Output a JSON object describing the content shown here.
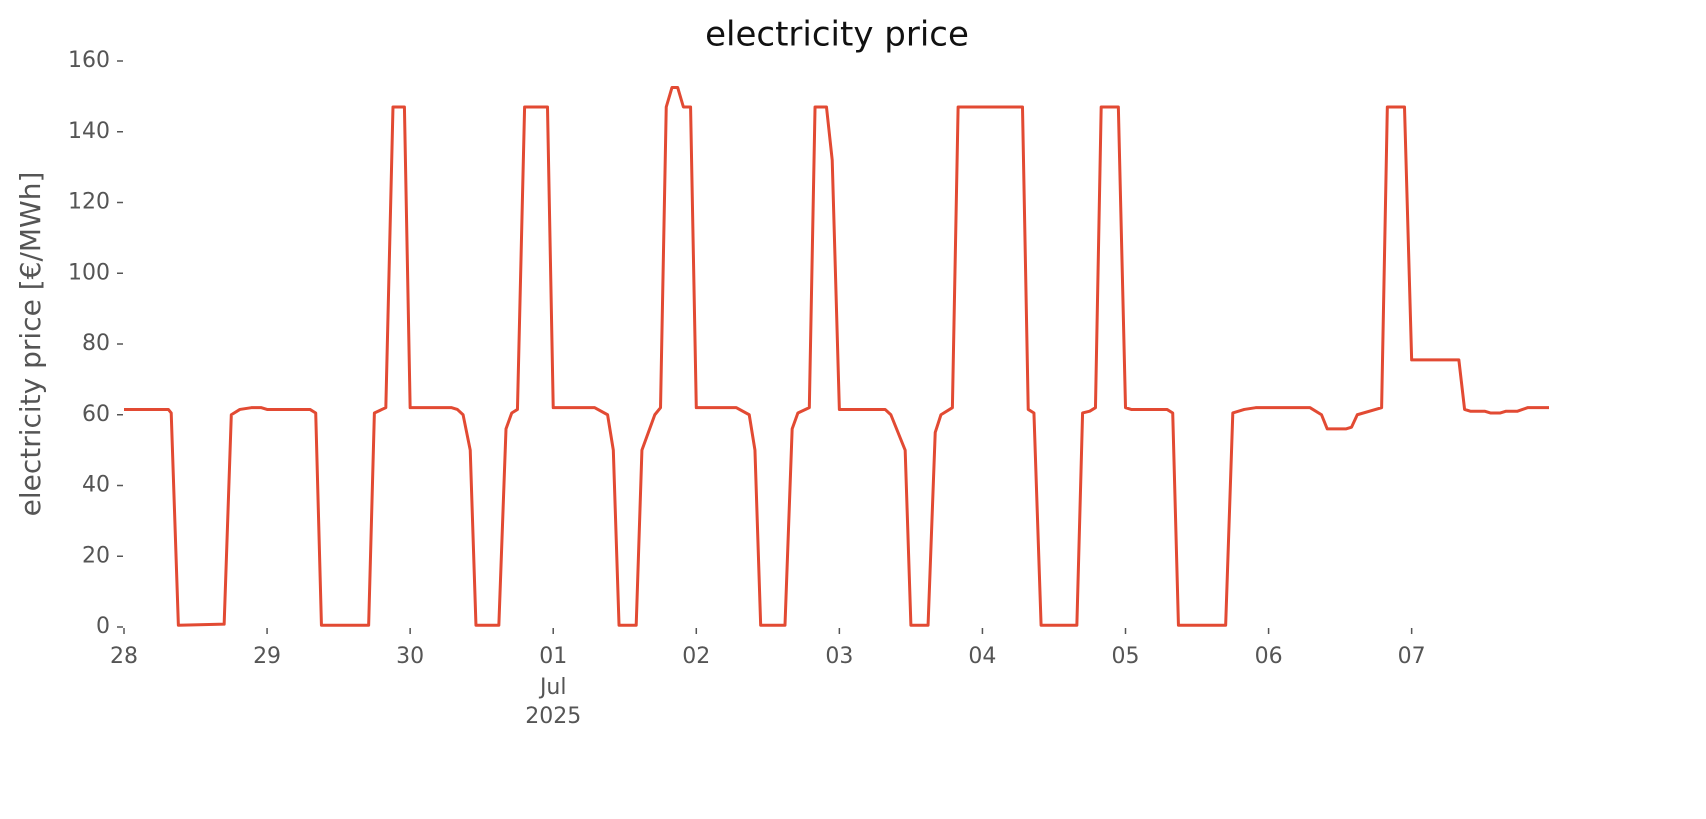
{
  "chart_data": {
    "type": "line",
    "title": "electricity price",
    "y_label": "electricity price [€/MWh]",
    "color": "#e24a33",
    "x": [
      0,
      0.31,
      0.33,
      0.38,
      0.7,
      0.75,
      0.81,
      0.89,
      0.96,
      1.0,
      1.3,
      1.34,
      1.38,
      1.71,
      1.75,
      1.83,
      1.88,
      1.96,
      2.0,
      2.29,
      2.33,
      2.37,
      2.42,
      2.46,
      2.62,
      2.67,
      2.71,
      2.75,
      2.8,
      2.96,
      3.0,
      3.29,
      3.38,
      3.42,
      3.46,
      3.58,
      3.62,
      3.71,
      3.75,
      3.79,
      3.83,
      3.87,
      3.91,
      3.96,
      4.0,
      4.28,
      4.37,
      4.41,
      4.45,
      4.62,
      4.67,
      4.71,
      4.79,
      4.83,
      4.91,
      4.95,
      5.0,
      5.32,
      5.36,
      5.46,
      5.5,
      5.62,
      5.67,
      5.71,
      5.79,
      5.83,
      6.28,
      6.32,
      6.36,
      6.41,
      6.66,
      6.7,
      6.75,
      6.79,
      6.83,
      6.95,
      7.0,
      7.04,
      7.29,
      7.33,
      7.37,
      7.7,
      7.75,
      7.83,
      7.91,
      8.29,
      8.37,
      8.41,
      8.54,
      8.58,
      8.62,
      8.79,
      8.83,
      8.95,
      9.0,
      9.33,
      9.37,
      9.41,
      9.51,
      9.55,
      9.62,
      9.66,
      9.74,
      9.81,
      9.96
    ],
    "values": [
      61.5,
      61.5,
      60.5,
      0.5,
      0.8,
      60,
      61.5,
      62,
      62,
      61.5,
      61.5,
      60.5,
      0.5,
      0.5,
      60.5,
      62,
      147,
      147,
      62,
      62,
      61.5,
      60,
      50,
      0.5,
      0.5,
      56,
      60.5,
      61.5,
      147,
      147,
      62,
      62,
      60,
      50,
      0.5,
      0.5,
      50,
      60,
      62,
      147,
      152.5,
      152.5,
      147,
      147,
      62,
      62,
      60,
      50,
      0.5,
      0.5,
      56,
      60.5,
      62,
      147,
      147,
      132,
      61.5,
      61.5,
      60,
      50,
      0.5,
      0.5,
      55,
      60,
      62,
      147,
      147,
      61.5,
      60.5,
      0.5,
      0.5,
      60.5,
      61,
      62,
      147,
      147,
      62,
      61.5,
      61.5,
      60.5,
      0.5,
      0.5,
      60.5,
      61.5,
      62,
      62,
      60,
      56,
      56,
      56.5,
      60,
      62,
      147,
      147,
      75.5,
      75.5,
      61.5,
      61,
      61,
      60.5,
      60.5,
      61,
      61,
      62,
      62
    ],
    "xlim": [
      0,
      9.96
    ],
    "ylim": [
      0,
      160
    ],
    "yticks": [
      0,
      20,
      40,
      60,
      80,
      100,
      120,
      140,
      160
    ],
    "xticks": [
      {
        "value": 0,
        "label": "28"
      },
      {
        "value": 1,
        "label": "29"
      },
      {
        "value": 2,
        "label": "30"
      },
      {
        "value": 3,
        "label": "01"
      },
      {
        "value": 4,
        "label": "02"
      },
      {
        "value": 5,
        "label": "03"
      },
      {
        "value": 6,
        "label": "04"
      },
      {
        "value": 7,
        "label": "05"
      },
      {
        "value": 8,
        "label": "06"
      },
      {
        "value": 9,
        "label": "07"
      }
    ],
    "xtick_sublabel": {
      "value": 3,
      "lines": [
        "Jul",
        "2025"
      ]
    }
  }
}
